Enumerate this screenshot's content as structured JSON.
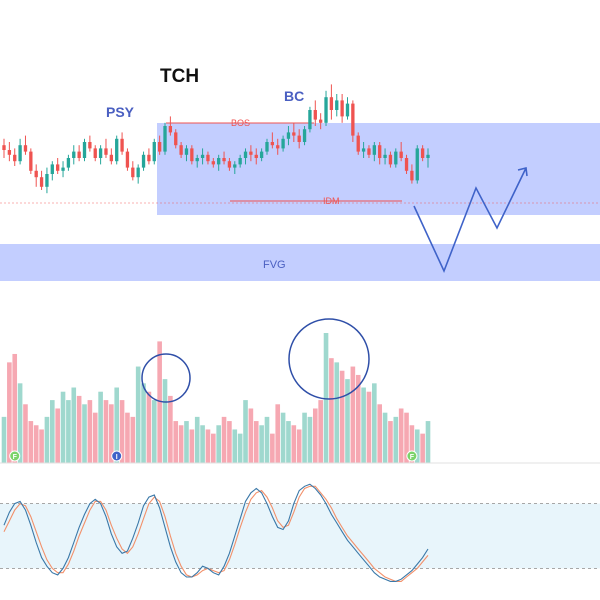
{
  "annotations": {
    "title": "TCH",
    "psy": "PSY",
    "bc": "BC",
    "bos": "BOS",
    "idm": "IDM",
    "fvg": "FVG"
  },
  "colors": {
    "bull": "#26a69a",
    "bear": "#ef5350",
    "vol_bull": "#9fd8ce",
    "vol_bear": "#f6a8b2",
    "zone": "#b9c6ff",
    "zone_text": "#4a5fc1",
    "projection": "#3f63c9",
    "circle": "#2f4fa8",
    "stoch_fast": "#3a78a8",
    "stoch_slow": "#f2906a",
    "stoch_band": "#e8f5fb",
    "marker_green": "#7bd36a",
    "marker_blue": "#3f63c9"
  },
  "markers": [
    {
      "label": "F",
      "index": 2,
      "color": "marker_green"
    },
    {
      "label": "I",
      "index": 21,
      "color": "marker_blue"
    },
    {
      "label": "F",
      "index": 76,
      "color": "marker_green"
    }
  ],
  "chart_data": [
    {
      "type": "candlestick",
      "ylim": [
        0,
        100
      ],
      "candles": [
        [
          58,
          62,
          50,
          55
        ],
        [
          55,
          60,
          48,
          52
        ],
        [
          52,
          56,
          45,
          48
        ],
        [
          48,
          62,
          46,
          58
        ],
        [
          58,
          64,
          52,
          54
        ],
        [
          54,
          56,
          40,
          42
        ],
        [
          42,
          46,
          32,
          38
        ],
        [
          38,
          42,
          30,
          32
        ],
        [
          32,
          44,
          28,
          40
        ],
        [
          40,
          48,
          36,
          46
        ],
        [
          46,
          50,
          40,
          42
        ],
        [
          42,
          48,
          38,
          44
        ],
        [
          44,
          52,
          42,
          50
        ],
        [
          50,
          58,
          46,
          54
        ],
        [
          54,
          58,
          48,
          50
        ],
        [
          50,
          62,
          48,
          60
        ],
        [
          60,
          64,
          54,
          56
        ],
        [
          56,
          58,
          48,
          50
        ],
        [
          50,
          58,
          46,
          56
        ],
        [
          56,
          62,
          50,
          52
        ],
        [
          52,
          56,
          46,
          48
        ],
        [
          48,
          64,
          46,
          62
        ],
        [
          62,
          66,
          52,
          54
        ],
        [
          54,
          56,
          42,
          44
        ],
        [
          44,
          48,
          36,
          38
        ],
        [
          38,
          46,
          34,
          44
        ],
        [
          44,
          54,
          42,
          52
        ],
        [
          52,
          56,
          46,
          48
        ],
        [
          48,
          62,
          46,
          60
        ],
        [
          60,
          64,
          52,
          54
        ],
        [
          54,
          72,
          52,
          70
        ],
        [
          70,
          76,
          64,
          66
        ],
        [
          66,
          68,
          56,
          58
        ],
        [
          58,
          60,
          50,
          52
        ],
        [
          52,
          58,
          48,
          56
        ],
        [
          56,
          58,
          46,
          48
        ],
        [
          48,
          52,
          44,
          50
        ],
        [
          50,
          56,
          46,
          52
        ],
        [
          52,
          54,
          46,
          48
        ],
        [
          48,
          50,
          44,
          46
        ],
        [
          46,
          52,
          42,
          50
        ],
        [
          50,
          54,
          46,
          48
        ],
        [
          48,
          50,
          42,
          44
        ],
        [
          44,
          48,
          40,
          46
        ],
        [
          46,
          52,
          44,
          50
        ],
        [
          50,
          56,
          46,
          54
        ],
        [
          54,
          58,
          48,
          52
        ],
        [
          52,
          56,
          46,
          50
        ],
        [
          50,
          56,
          48,
          54
        ],
        [
          54,
          62,
          52,
          60
        ],
        [
          60,
          66,
          56,
          58
        ],
        [
          58,
          62,
          52,
          56
        ],
        [
          56,
          64,
          54,
          62
        ],
        [
          62,
          70,
          58,
          66
        ],
        [
          66,
          72,
          60,
          64
        ],
        [
          64,
          68,
          56,
          60
        ],
        [
          60,
          70,
          58,
          68
        ],
        [
          68,
          82,
          66,
          80
        ],
        [
          80,
          86,
          70,
          74
        ],
        [
          74,
          78,
          68,
          72
        ],
        [
          72,
          92,
          70,
          88
        ],
        [
          88,
          96,
          74,
          80
        ],
        [
          80,
          90,
          76,
          86
        ],
        [
          86,
          90,
          72,
          76
        ],
        [
          76,
          88,
          74,
          84
        ],
        [
          84,
          86,
          60,
          64
        ],
        [
          64,
          66,
          52,
          54
        ],
        [
          54,
          60,
          50,
          56
        ],
        [
          56,
          58,
          50,
          52
        ],
        [
          52,
          60,
          48,
          58
        ],
        [
          58,
          60,
          46,
          50
        ],
        [
          50,
          56,
          46,
          52
        ],
        [
          52,
          54,
          44,
          46
        ],
        [
          46,
          56,
          44,
          54
        ],
        [
          54,
          60,
          48,
          50
        ],
        [
          50,
          52,
          40,
          42
        ],
        [
          42,
          46,
          34,
          36
        ],
        [
          36,
          58,
          34,
          56
        ],
        [
          56,
          58,
          48,
          50
        ],
        [
          50,
          56,
          44,
          52
        ]
      ]
    },
    {
      "type": "bar",
      "values": [
        22,
        48,
        52,
        38,
        28,
        20,
        18,
        16,
        22,
        30,
        26,
        34,
        30,
        36,
        32,
        28,
        30,
        24,
        34,
        30,
        28,
        36,
        30,
        24,
        22,
        46,
        38,
        34,
        30,
        58,
        40,
        32,
        20,
        18,
        20,
        16,
        22,
        18,
        16,
        14,
        18,
        22,
        20,
        16,
        14,
        30,
        26,
        20,
        18,
        22,
        14,
        28,
        24,
        20,
        18,
        16,
        24,
        22,
        26,
        30,
        62,
        50,
        48,
        44,
        40,
        46,
        42,
        36,
        34,
        38,
        28,
        24,
        20,
        22,
        26,
        24,
        18,
        16,
        14,
        20
      ],
      "bull_flags": [
        1,
        0,
        0,
        1,
        0,
        0,
        0,
        0,
        1,
        1,
        0,
        1,
        1,
        1,
        0,
        1,
        0,
        0,
        1,
        0,
        0,
        1,
        0,
        0,
        0,
        1,
        1,
        0,
        1,
        0,
        1,
        0,
        0,
        0,
        1,
        0,
        1,
        1,
        0,
        0,
        1,
        0,
        0,
        1,
        1,
        1,
        0,
        0,
        1,
        1,
        0,
        0,
        1,
        1,
        0,
        0,
        1,
        1,
        0,
        0,
        1,
        0,
        1,
        0,
        1,
        0,
        0,
        1,
        0,
        1,
        0,
        1,
        0,
        1,
        0,
        0,
        0,
        1,
        0,
        1
      ]
    },
    {
      "type": "line",
      "ylim": [
        0,
        100
      ],
      "band": [
        20,
        80
      ],
      "series": [
        {
          "values": [
            60,
            72,
            80,
            82,
            74,
            60,
            44,
            30,
            22,
            16,
            14,
            20,
            30,
            44,
            58,
            70,
            80,
            84,
            80,
            68,
            52,
            40,
            34,
            36,
            48,
            62,
            78,
            86,
            88,
            76,
            58,
            40,
            26,
            16,
            12,
            12,
            16,
            22,
            20,
            16,
            14,
            22,
            34,
            50,
            66,
            82,
            90,
            94,
            90,
            80,
            68,
            58,
            56,
            64,
            80,
            92,
            96,
            98,
            94,
            88,
            80,
            70,
            62,
            54,
            46,
            40,
            34,
            28,
            22,
            16,
            12,
            10,
            8,
            8,
            10,
            14,
            18,
            24,
            30,
            38
          ]
        },
        {
          "values": [
            54,
            64,
            74,
            80,
            78,
            68,
            54,
            40,
            28,
            20,
            16,
            16,
            24,
            36,
            50,
            62,
            74,
            82,
            82,
            74,
            60,
            48,
            38,
            34,
            40,
            52,
            66,
            80,
            86,
            82,
            68,
            50,
            34,
            22,
            14,
            12,
            14,
            18,
            20,
            18,
            16,
            18,
            28,
            42,
            58,
            72,
            84,
            90,
            92,
            86,
            76,
            64,
            58,
            60,
            72,
            86,
            94,
            96,
            96,
            90,
            84,
            76,
            66,
            58,
            50,
            44,
            38,
            32,
            26,
            20,
            16,
            12,
            10,
            8,
            8,
            12,
            16,
            20,
            26,
            32
          ]
        }
      ]
    }
  ]
}
